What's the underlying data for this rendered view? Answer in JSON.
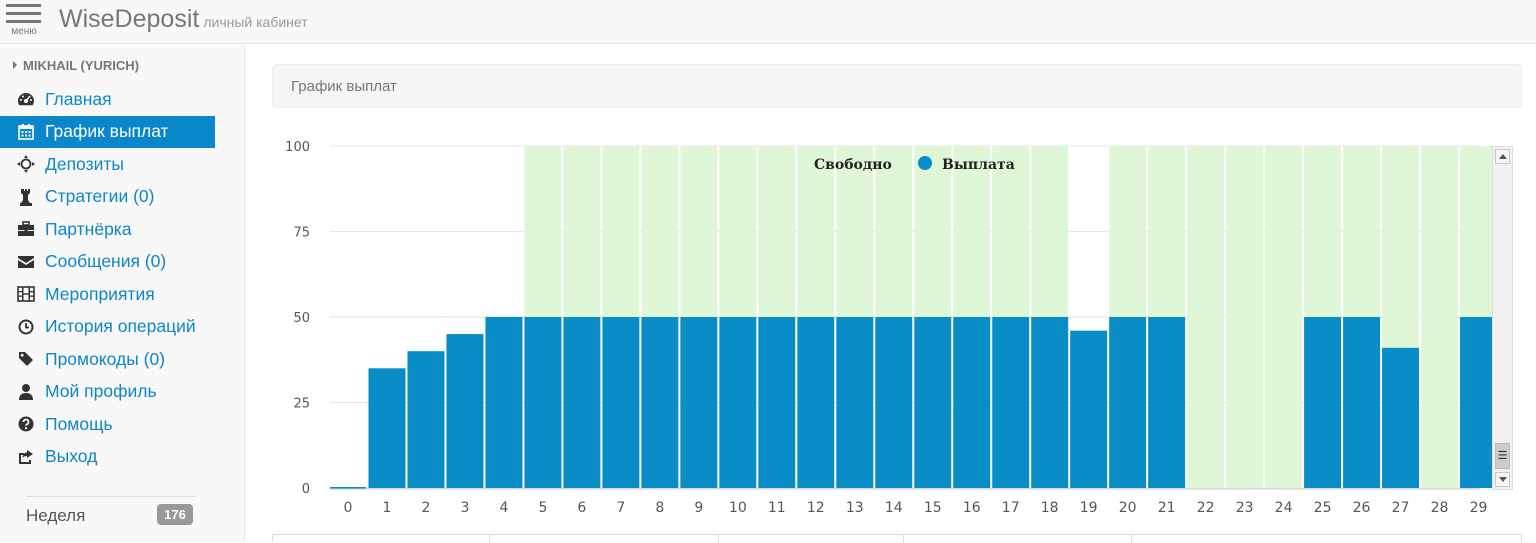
{
  "header": {
    "menu_caption": "меню",
    "brand": "WiseDeposit",
    "brand_sub": "личный кабинет"
  },
  "sidebar": {
    "user": "MIKHAIL (YURICH)",
    "items": [
      {
        "label": "Главная",
        "icon": "dashboard-icon",
        "active": false
      },
      {
        "label": "График выплат",
        "icon": "calendar-icon",
        "active": true
      },
      {
        "label": "Депозиты",
        "icon": "crosshairs-icon",
        "active": false
      },
      {
        "label": "Стратегии (0)",
        "icon": "chess-icon",
        "active": false
      },
      {
        "label": "Партнёрка",
        "icon": "briefcase-icon",
        "active": false
      },
      {
        "label": "Сообщения (0)",
        "icon": "envelope-icon",
        "active": false
      },
      {
        "label": "Мероприятия",
        "icon": "film-icon",
        "active": false
      },
      {
        "label": "История операций",
        "icon": "clock-icon",
        "active": false
      },
      {
        "label": "Промокоды (0)",
        "icon": "tag-icon",
        "active": false
      },
      {
        "label": "Мой профиль",
        "icon": "user-icon",
        "active": false
      },
      {
        "label": "Помощь",
        "icon": "question-icon",
        "active": false
      },
      {
        "label": "Выход",
        "icon": "share-icon",
        "active": false
      }
    ],
    "week_label": "Неделя",
    "week_badge": "176"
  },
  "main": {
    "panel_title": "График выплат"
  },
  "colors": {
    "accent": "#0a86ca",
    "bar_payout": "#088dc7",
    "bar_free": "#dff7d7"
  },
  "chart_data": {
    "type": "bar",
    "stacked": true,
    "categories": [
      "0",
      "1",
      "2",
      "3",
      "4",
      "5",
      "6",
      "7",
      "8",
      "9",
      "10",
      "11",
      "12",
      "13",
      "14",
      "15",
      "16",
      "17",
      "18",
      "19",
      "20",
      "21",
      "22",
      "23",
      "24",
      "25",
      "26",
      "27",
      "28",
      "29"
    ],
    "series": [
      {
        "name": "Выплата",
        "color": "#088dc7",
        "values": [
          0,
          35,
          40,
          45,
          50,
          50,
          50,
          50,
          50,
          50,
          50,
          50,
          50,
          50,
          50,
          50,
          50,
          50,
          50,
          46,
          50,
          50,
          0,
          0,
          0,
          50,
          50,
          41,
          0,
          50
        ]
      },
      {
        "name": "Свободно",
        "color": "#dff7d7",
        "values": [
          0,
          0,
          0,
          0,
          0,
          50,
          50,
          50,
          50,
          50,
          50,
          50,
          50,
          50,
          50,
          50,
          50,
          50,
          50,
          0,
          50,
          50,
          100,
          100,
          100,
          50,
          50,
          59,
          100,
          50
        ]
      }
    ],
    "yticks": [
      0,
      25,
      50,
      75,
      100
    ],
    "ylim": [
      0,
      100
    ],
    "grid": true,
    "legend_position": "top-center"
  }
}
